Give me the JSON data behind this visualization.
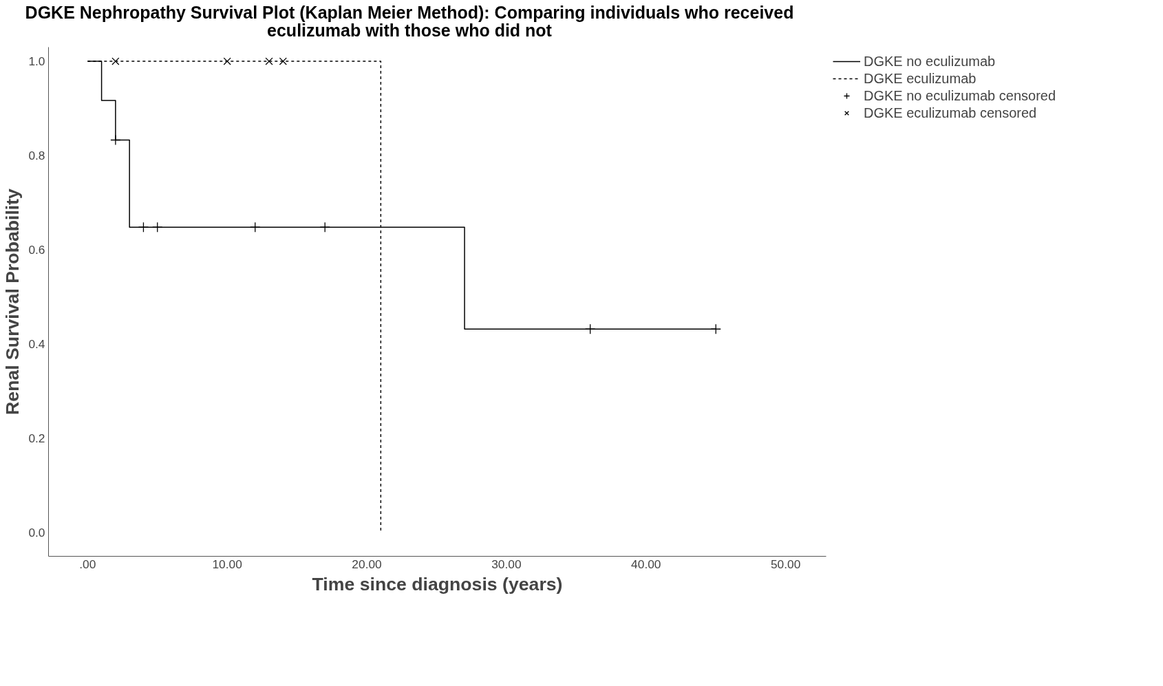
{
  "chart_data": {
    "type": "step",
    "title": "DGKE Nephropathy Survival Plot (Kaplan Meier Method): Comparing individuals who received eculizumab with those who did not",
    "xlabel": "Time since diagnosis (years)",
    "ylabel": "Renal Survival Probability",
    "xlim": [
      -2.8,
      52.9
    ],
    "ylim": [
      -0.05,
      1.03
    ],
    "xticks": [
      {
        "value": 0,
        "label": ".00"
      },
      {
        "value": 10,
        "label": "10.00"
      },
      {
        "value": 20,
        "label": "20.00"
      },
      {
        "value": 30,
        "label": "30.00"
      },
      {
        "value": 40,
        "label": "40.00"
      },
      {
        "value": 50,
        "label": "50.00"
      }
    ],
    "yticks": [
      {
        "value": 0,
        "label": "0.0"
      },
      {
        "value": 0.2,
        "label": "0.2"
      },
      {
        "value": 0.4,
        "label": "0.4"
      },
      {
        "value": 0.6,
        "label": "0.6"
      },
      {
        "value": 0.8,
        "label": "0.8"
      },
      {
        "value": 1,
        "label": "1.0"
      }
    ],
    "grid": false,
    "legend": "top right",
    "series": [
      {
        "name": "DGKE no eculizumab",
        "color": "#000000",
        "line_style": "solid",
        "x": [
          0,
          1,
          2,
          3,
          27,
          45
        ],
        "values": [
          1,
          0.917,
          0.833,
          0.648,
          0.432,
          0.432
        ]
      },
      {
        "name": "DGKE eculizumab",
        "color": "#000000",
        "line_style": "dotted",
        "x": [
          0,
          21
        ],
        "values": [
          1,
          0
        ]
      },
      {
        "name": "DGKE no eculizumab censored",
        "type": "scatter",
        "marker": "cross",
        "color": "#000000",
        "x": [
          2,
          4,
          5,
          12,
          17,
          36,
          45
        ],
        "values": [
          0.833,
          0.648,
          0.648,
          0.648,
          0.648,
          0.432,
          0.432
        ]
      },
      {
        "name": "DGKE eculizumab censored",
        "type": "scatter",
        "marker": "x",
        "color": "#000000",
        "x": [
          2,
          10,
          13,
          14
        ],
        "values": [
          1,
          1,
          1,
          1
        ]
      }
    ]
  }
}
